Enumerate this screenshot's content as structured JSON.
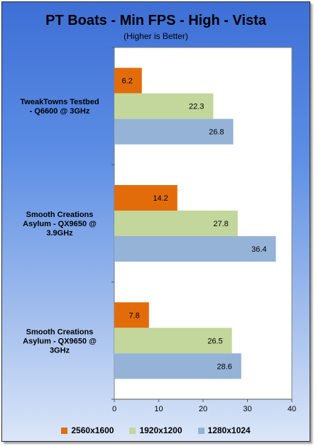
{
  "chart_data": {
    "type": "bar",
    "orientation": "horizontal",
    "title": "PT Boats - Min FPS - High - Vista",
    "subtitle": "(Higher is Better)",
    "categories": [
      "TweakTowns Testbed - Q6600 @ 3GHz",
      "Smooth Creations Asylum - QX9650 @ 3.9GHz",
      "Smooth Creations Asylum - QX9650 @ 3GHz"
    ],
    "category_lines": [
      [
        "TweakTowns Testbed",
        "- Q6600 @ 3GHz"
      ],
      [
        "Smooth Creations",
        "Asylum - QX9650 @",
        "3.9GHz"
      ],
      [
        "Smooth Creations",
        "Asylum - QX9650 @",
        "3GHz"
      ]
    ],
    "series": [
      {
        "name": "2560x1600",
        "color": "#e36c0a",
        "values": [
          6.2,
          14.2,
          7.8
        ]
      },
      {
        "name": "1920x1200",
        "color": "#c3d69b",
        "values": [
          22.3,
          27.8,
          26.5
        ]
      },
      {
        "name": "1280x1024",
        "color": "#95b3d7",
        "values": [
          26.8,
          36.4,
          28.6
        ]
      }
    ],
    "xlim": [
      0,
      40
    ],
    "xticks": [
      0,
      10,
      20,
      30,
      40
    ],
    "grid": false,
    "legend": "bottom"
  }
}
